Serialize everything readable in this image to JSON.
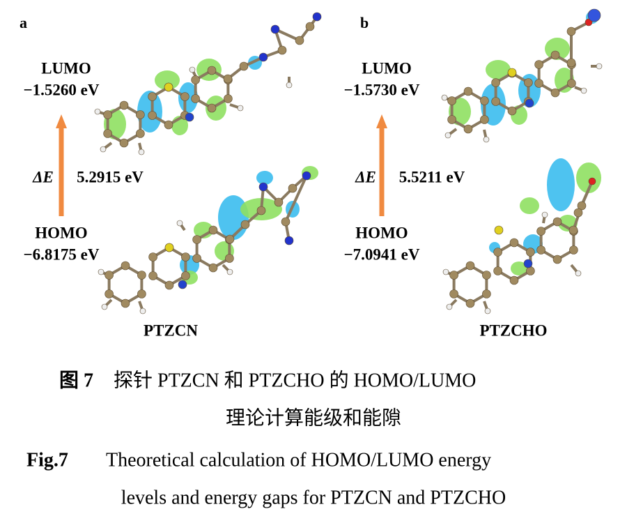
{
  "panels": [
    {
      "tag": "a",
      "lumo_label": "LUMO",
      "lumo_energy": "−1.5260 eV",
      "gap_symbol": "ΔE",
      "gap_value": "5.2915 eV",
      "homo_label": "HOMO",
      "homo_energy": "−6.8175 eV",
      "molecule": "PTZCN"
    },
    {
      "tag": "b",
      "lumo_label": "LUMO",
      "lumo_energy": "−1.5730 eV",
      "gap_symbol": "ΔE",
      "gap_value": "5.5211 eV",
      "homo_label": "HOMO",
      "homo_energy": "−7.0941 eV",
      "molecule": "PTZCHO"
    }
  ],
  "caption_zh": {
    "label": "图 7",
    "lines": [
      "探针 PTZCN 和 PTZCHO 的 HOMO/LUMO",
      "理论计算能级和能隙"
    ]
  },
  "caption_en": {
    "label": "Fig.7",
    "lines": [
      "Theoretical calculation of HOMO/LUMO energy",
      "levels and energy gaps for PTZCN and PTZCHO"
    ]
  }
}
